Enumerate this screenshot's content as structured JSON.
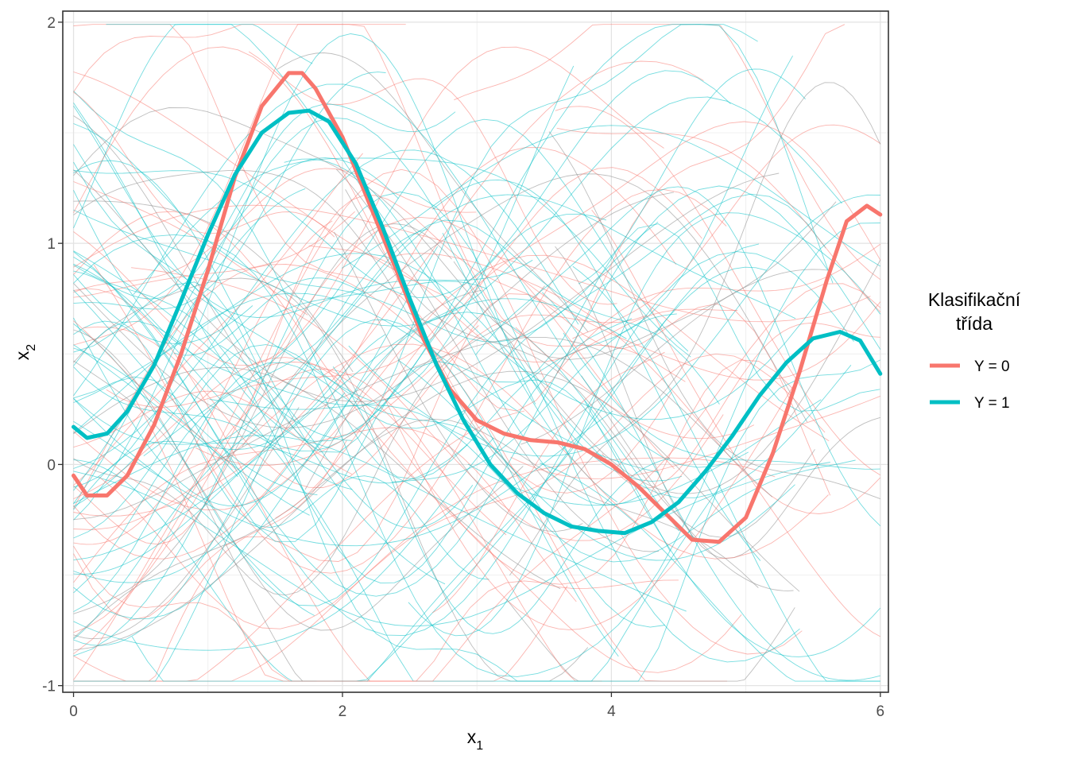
{
  "chart_data": {
    "type": "line",
    "xlabel": "x",
    "xlabel_sub": "1",
    "ylabel": "x",
    "ylabel_sub": "2",
    "xlim": [
      -0.08,
      6.06
    ],
    "ylim": [
      -1.03,
      2.05
    ],
    "x_ticks": [
      0,
      2,
      4,
      6
    ],
    "y_ticks": [
      -1,
      0,
      1,
      2
    ],
    "x_tick_labels": [
      "0",
      "2",
      "4",
      "6"
    ],
    "y_tick_labels": [
      "-1",
      "0",
      "1",
      "2"
    ],
    "grid": true,
    "legend": {
      "title_line1": "Klasifikační",
      "title_line2": "třída",
      "position": "right",
      "entries": [
        {
          "label": "Y = 0",
          "color": "#F8766D"
        },
        {
          "label": "Y = 1",
          "color": "#00BFC4"
        }
      ]
    },
    "series": [
      {
        "name": "Y = 0",
        "color": "#F8766D",
        "role": "mean",
        "x": [
          0,
          0.1,
          0.25,
          0.4,
          0.6,
          0.8,
          1.0,
          1.2,
          1.4,
          1.6,
          1.7,
          1.8,
          2.0,
          2.2,
          2.4,
          2.6,
          2.8,
          3.0,
          3.2,
          3.4,
          3.6,
          3.8,
          4.0,
          4.2,
          4.4,
          4.6,
          4.8,
          5.0,
          5.2,
          5.4,
          5.6,
          5.75,
          5.9,
          6.0
        ],
        "y": [
          -0.05,
          -0.14,
          -0.14,
          -0.05,
          0.18,
          0.5,
          0.88,
          1.3,
          1.62,
          1.77,
          1.77,
          1.7,
          1.48,
          1.18,
          0.88,
          0.57,
          0.34,
          0.2,
          0.14,
          0.11,
          0.1,
          0.07,
          0.0,
          -0.1,
          -0.22,
          -0.34,
          -0.35,
          -0.24,
          0.05,
          0.42,
          0.83,
          1.1,
          1.17,
          1.13
        ]
      },
      {
        "name": "Y = 1",
        "color": "#00BFC4",
        "role": "mean",
        "x": [
          0,
          0.1,
          0.25,
          0.4,
          0.6,
          0.8,
          1.0,
          1.2,
          1.4,
          1.6,
          1.75,
          1.9,
          2.1,
          2.3,
          2.5,
          2.7,
          2.9,
          3.1,
          3.3,
          3.5,
          3.7,
          3.9,
          4.1,
          4.3,
          4.5,
          4.7,
          4.9,
          5.1,
          5.3,
          5.5,
          5.7,
          5.85,
          6.0
        ],
        "y": [
          0.17,
          0.12,
          0.14,
          0.24,
          0.45,
          0.74,
          1.04,
          1.31,
          1.5,
          1.59,
          1.6,
          1.55,
          1.36,
          1.07,
          0.75,
          0.45,
          0.2,
          0.0,
          -0.13,
          -0.22,
          -0.28,
          -0.3,
          -0.31,
          -0.26,
          -0.17,
          -0.03,
          0.13,
          0.31,
          0.46,
          0.57,
          0.6,
          0.56,
          0.41
        ]
      }
    ]
  }
}
